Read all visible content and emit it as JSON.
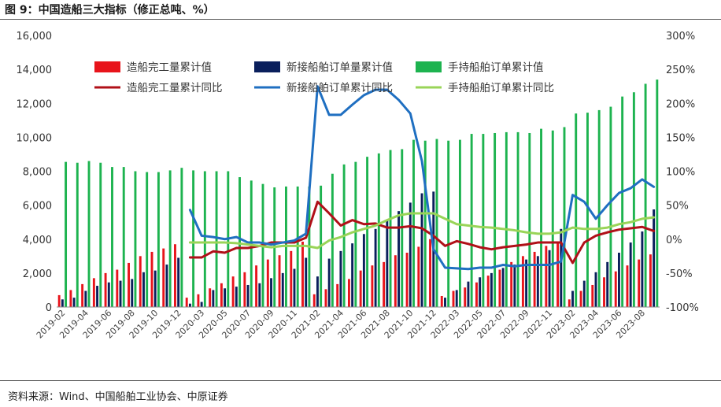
{
  "title": "图 9：中国造船三大指标（修正总吨、%）",
  "source": "资料来源：Wind、中国船舶工业协会、中原证券",
  "chart_data": {
    "type": "bar+line",
    "y_left": {
      "min": 0,
      "max": 16000,
      "ticks": [
        "0",
        "2,000",
        "4,000",
        "6,000",
        "8,000",
        "10,000",
        "12,000",
        "14,000",
        "16,000"
      ]
    },
    "y_right": {
      "min": -100,
      "max": 300,
      "ticks": [
        "-100%",
        "-50%",
        "0%",
        "50%",
        "100%",
        "150%",
        "200%",
        "250%",
        "300%"
      ]
    },
    "x_tick_labels": [
      "2019-02",
      "2019-04",
      "2019-06",
      "2019-08",
      "2019-10",
      "2019-12",
      "2020-03",
      "2020-05",
      "2020-07",
      "2020-09",
      "2020-11",
      "2021-02",
      "2021-04",
      "2021-06",
      "2021-08",
      "2021-10",
      "2021-12",
      "2022-03",
      "2022-05",
      "2022-07",
      "2022-09",
      "2022-11",
      "2023-02",
      "2023-04",
      "2023-06",
      "2023-08"
    ],
    "colors": {
      "completed": "#e8141b",
      "new_orders": "#0a1f5c",
      "backlog": "#1db34f",
      "completed_yoy": "#b01018",
      "new_orders_yoy": "#1f6fc1",
      "backlog_yoy": "#99d458"
    },
    "legend": [
      {
        "label": "造船完工量累计值",
        "kind": "bar",
        "color_key": "completed"
      },
      {
        "label": "新接船舶订单量累计值",
        "kind": "bar",
        "color_key": "new_orders"
      },
      {
        "label": "手持船舶订单累计值",
        "kind": "bar",
        "color_key": "backlog"
      },
      {
        "label": "造船完工量累计同比",
        "kind": "line",
        "color_key": "completed_yoy"
      },
      {
        "label": "新接船舶订单累计同比",
        "kind": "line",
        "color_key": "new_orders_yoy"
      },
      {
        "label": "手持船舶订单累计同比",
        "kind": "line",
        "color_key": "backlog_yoy"
      }
    ],
    "categories": [
      "2019-02",
      "2019-03",
      "2019-04",
      "2019-05",
      "2019-06",
      "2019-07",
      "2019-08",
      "2019-09",
      "2019-10",
      "2019-11",
      "2019-12",
      "2020-02",
      "2020-03",
      "2020-04",
      "2020-05",
      "2020-06",
      "2020-07",
      "2020-08",
      "2020-09",
      "2020-10",
      "2020-11",
      "2020-12",
      "2021-02",
      "2021-03",
      "2021-04",
      "2021-05",
      "2021-06",
      "2021-07",
      "2021-08",
      "2021-09",
      "2021-10",
      "2021-11",
      "2021-12",
      "2022-02",
      "2022-03",
      "2022-04",
      "2022-05",
      "2022-06",
      "2022-07",
      "2022-08",
      "2022-09",
      "2022-10",
      "2022-11",
      "2022-12",
      "2023-02",
      "2023-03",
      "2023-04",
      "2023-05",
      "2023-06",
      "2023-07",
      "2023-08",
      "2023-09"
    ],
    "series": [
      {
        "name": "造船完工量累计值",
        "type": "bar",
        "color_key": "completed",
        "values": [
          700,
          1000,
          1350,
          1700,
          2000,
          2200,
          2600,
          3000,
          3250,
          3450,
          3700,
          550,
          750,
          1100,
          1400,
          1800,
          2050,
          2450,
          2800,
          3050,
          3300,
          3850,
          750,
          1050,
          1350,
          1650,
          2150,
          2450,
          2650,
          3050,
          3200,
          3550,
          4000,
          650,
          950,
          1150,
          1450,
          1850,
          2200,
          2650,
          3000,
          3250,
          3600,
          3800,
          450,
          950,
          1300,
          1750,
          2100,
          2450,
          2800,
          3100
        ]
      },
      {
        "name": "新接船舶订单量累计值",
        "type": "bar",
        "color_key": "new_orders",
        "values": [
          450,
          550,
          950,
          1250,
          1450,
          1550,
          1650,
          2050,
          2150,
          2500,
          2900,
          200,
          300,
          1000,
          1100,
          1200,
          1300,
          1400,
          1700,
          2000,
          2250,
          2900,
          1800,
          2850,
          3300,
          3750,
          4300,
          4600,
          5100,
          5650,
          6150,
          6700,
          6800,
          550,
          1000,
          1500,
          1750,
          2000,
          2300,
          2500,
          2800,
          3000,
          3350,
          4600,
          950,
          1550,
          2050,
          2650,
          3200,
          3800,
          4450,
          5750
        ]
      },
      {
        "name": "手持船舶订单累计值",
        "type": "bar",
        "color_key": "backlog",
        "values": [
          8550,
          8500,
          8600,
          8500,
          8250,
          8250,
          8000,
          7950,
          7950,
          8050,
          8200,
          8050,
          8000,
          8000,
          8000,
          7650,
          7450,
          7250,
          7050,
          7100,
          7100,
          7100,
          7150,
          7850,
          8400,
          8550,
          8850,
          9050,
          9250,
          9300,
          9850,
          9800,
          9900,
          9800,
          9850,
          10200,
          10200,
          10250,
          10300,
          10300,
          10250,
          10500,
          10400,
          10600,
          11400,
          11450,
          11600,
          11800,
          12400,
          12650,
          13150,
          13400
        ]
      },
      {
        "name": "造船完工量累计同比",
        "type": "line",
        "color_key": "completed_yoy",
        "values": [
          null,
          null,
          null,
          null,
          null,
          null,
          null,
          null,
          null,
          null,
          null,
          -27,
          -27,
          -18,
          -20,
          -13,
          -13,
          -10,
          -5,
          -5,
          -5,
          2,
          55,
          38,
          20,
          28,
          22,
          23,
          17,
          17,
          19,
          16,
          5,
          -10,
          -3,
          -7,
          -12,
          -15,
          -12,
          -10,
          -8,
          -5,
          -5,
          -5,
          -35,
          -5,
          5,
          10,
          14,
          16,
          18,
          12
        ]
      },
      {
        "name": "新接船舶订单累计同比",
        "type": "line",
        "color_key": "new_orders_yoy",
        "values": [
          null,
          null,
          null,
          null,
          null,
          null,
          null,
          null,
          null,
          null,
          null,
          43,
          5,
          3,
          0,
          3,
          -5,
          -5,
          -8,
          -5,
          -2,
          8,
          225,
          183,
          183,
          198,
          212,
          220,
          220,
          205,
          185,
          115,
          -15,
          -42,
          -43,
          -44,
          -42,
          -42,
          -38,
          -40,
          -38,
          -38,
          -38,
          -33,
          65,
          55,
          30,
          50,
          68,
          75,
          88,
          77
        ]
      },
      {
        "name": "手持船舶订单累计同比",
        "type": "line",
        "color_key": "backlog_yoy",
        "values": [
          null,
          null,
          null,
          null,
          null,
          null,
          null,
          null,
          null,
          null,
          null,
          -5,
          -5,
          -5,
          -5,
          -6,
          -8,
          -10,
          -12,
          -10,
          -10,
          -10,
          -13,
          -2,
          3,
          10,
          15,
          20,
          28,
          35,
          38,
          38,
          38,
          30,
          22,
          20,
          18,
          17,
          15,
          13,
          10,
          8,
          8,
          10,
          17,
          15,
          15,
          17,
          22,
          25,
          30,
          32
        ]
      }
    ]
  }
}
